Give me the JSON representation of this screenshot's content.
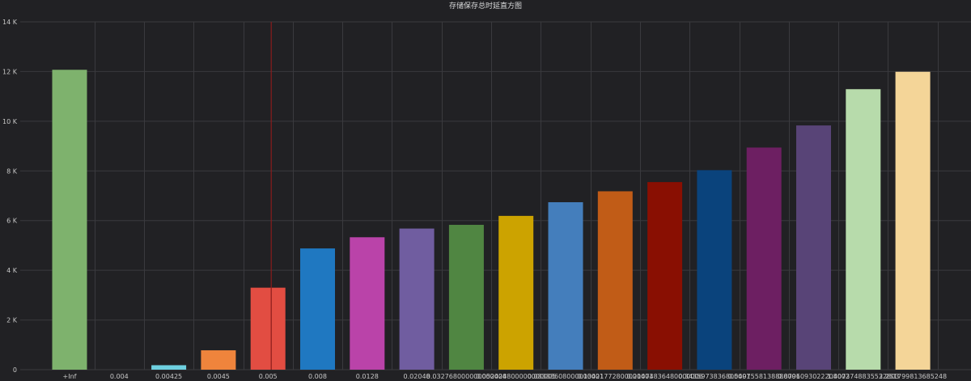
{
  "chart_data": {
    "type": "bar",
    "title": "存储保存总时延直方图",
    "xlabel": "",
    "ylabel": "",
    "ylim": [
      0,
      14000
    ],
    "yticks": [
      {
        "value": 0,
        "label": "0"
      },
      {
        "value": 2000,
        "label": "2 K"
      },
      {
        "value": 4000,
        "label": "4 K"
      },
      {
        "value": 6000,
        "label": "6 K"
      },
      {
        "value": 8000,
        "label": "8 K"
      },
      {
        "value": 10000,
        "label": "10 K"
      },
      {
        "value": 12000,
        "label": "12 K"
      },
      {
        "value": 14000,
        "label": "14 K"
      }
    ],
    "grid": true,
    "legend": "none",
    "categories": [
      "+Inf",
      "0.004",
      "0.00425",
      "0.0045",
      "0.005",
      "0.008",
      "0.0128",
      "0.02048",
      "0.032768000000000004",
      "0.052428800000000005",
      "0.08388608000000001",
      "0.13421772800000003",
      "0.21474836480000006",
      "0.3435973836800001",
      "0.5497558138880001",
      "0.8796093022208002",
      "1.4073748835532803",
      "2.251799813685248"
    ],
    "category_labels_shown": [
      "+Inf",
      "0.004",
      "0.00425",
      "0.0045",
      "0.005",
      "0.008",
      "0.0128",
      "0.02048",
      "0.032768000000000004",
      "0.052428800000000005",
      "0.08388608000000001",
      "0.13421772800000003",
      "0.21474836480000006",
      "0.3435973836800001",
      "0.5497558138880001",
      "0.8796093022208002",
      "1.4073748835532803",
      "2.251799813685248"
    ],
    "values": [
      12070,
      0,
      180,
      780,
      3300,
      4880,
      5330,
      5680,
      5830,
      6190,
      6740,
      7180,
      7550,
      8030,
      8940,
      9830,
      11290,
      11990
    ],
    "colors": [
      "#7EB26D",
      "#EAB839",
      "#6ED0E0",
      "#EF843C",
      "#E24D42",
      "#1F78C1",
      "#BA43A9",
      "#705DA0",
      "#508642",
      "#CCA300",
      "#447EBC",
      "#C15C17",
      "#890F02",
      "#0A437C",
      "#6D1F62",
      "#584477",
      "#B7DBAB",
      "#F4D598"
    ],
    "marker_line": {
      "category": "0.005",
      "color": "#8a1c1c"
    }
  }
}
